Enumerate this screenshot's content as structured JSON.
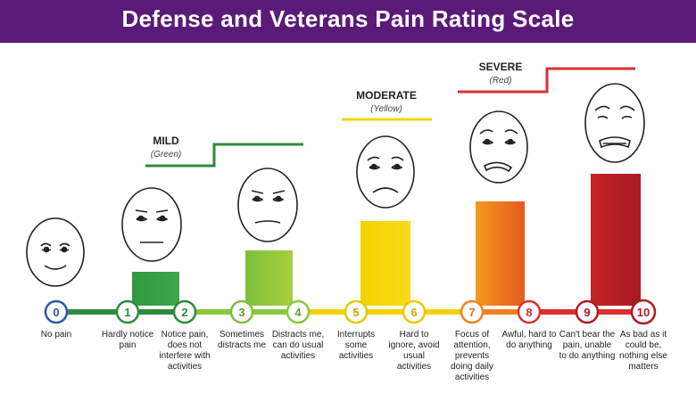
{
  "title": "Defense and Veterans Pain Rating Scale",
  "colors": {
    "banner": "#5a1a78",
    "mild": "#2e8b3d",
    "mild_light": "#8cc63f",
    "moderate": "#f2d300",
    "severe_orange": "#f08020",
    "severe": "#d93030",
    "severe_dark": "#b01a22"
  },
  "categories": [
    {
      "key": "mild",
      "label": "MILD",
      "color_name": "(Green)"
    },
    {
      "key": "moderate",
      "label": "MODERATE",
      "color_name": "(Yellow)"
    },
    {
      "key": "severe",
      "label": "SEVERE",
      "color_name": "(Red)"
    }
  ],
  "levels": [
    {
      "value": "0",
      "description": "No pain",
      "face": "neutral-smile"
    },
    {
      "value": "1",
      "description": "Hardly notice pain",
      "face": "neutral"
    },
    {
      "value": "2",
      "description": "Notice pain, does not interfere with activities",
      "face": ""
    },
    {
      "value": "3",
      "description": "Sometimes distracts me",
      "face": "slight-frown"
    },
    {
      "value": "4",
      "description": "Distracts me, can do usual activities",
      "face": ""
    },
    {
      "value": "5",
      "description": "Interrupts some activities",
      "face": "frown"
    },
    {
      "value": "6",
      "description": "Hard to ignore, avoid usual activities",
      "face": ""
    },
    {
      "value": "7",
      "description": "Focus of attention, prevents doing daily activities",
      "face": "grimace"
    },
    {
      "value": "8",
      "description": "Awful, hard to do anything",
      "face": ""
    },
    {
      "value": "9",
      "description": "Can't bear the pain, unable to do anything",
      "face": "anguish"
    },
    {
      "value": "10",
      "description": "As bad as it could be, nothing else matters",
      "face": ""
    }
  ]
}
